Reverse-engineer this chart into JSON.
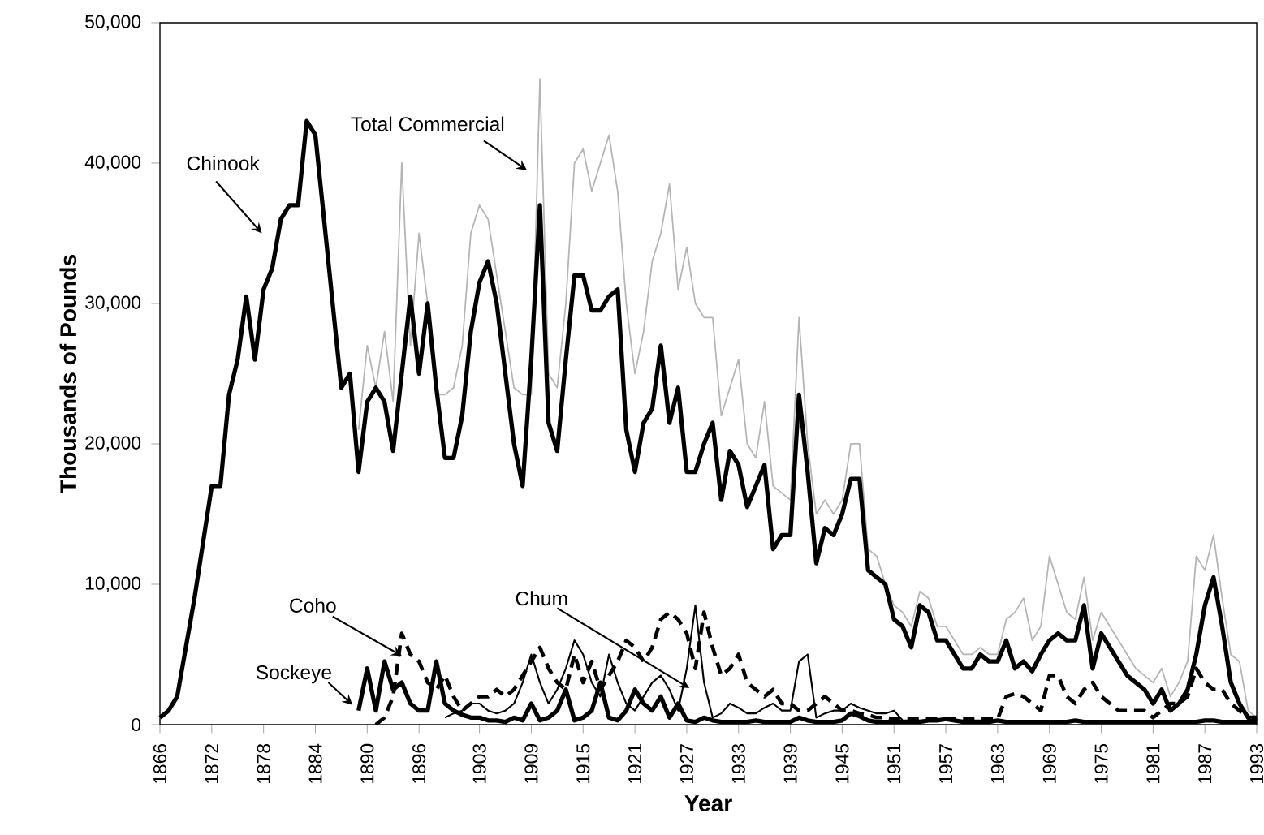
{
  "chart_data": {
    "type": "line",
    "xlabel": "Year",
    "ylabel": "Thousands of Pounds",
    "xlim": [
      1866,
      1993
    ],
    "ylim": [
      0,
      50000
    ],
    "xticks": [
      1866,
      1872,
      1878,
      1884,
      1890,
      1896,
      1903,
      1909,
      1915,
      1921,
      1927,
      1933,
      1939,
      1945,
      1951,
      1957,
      1963,
      1969,
      1975,
      1981,
      1987,
      1993
    ],
    "yticks": [
      0,
      {
        "value": 10000,
        "label": "10,000"
      },
      {
        "value": 20000,
        "label": "20,000"
      },
      {
        "value": 30000,
        "label": "30,000"
      },
      {
        "value": 40000,
        "label": "40,000"
      },
      {
        "value": 50000,
        "label": "50,000"
      }
    ],
    "grid": false,
    "legend": false,
    "marker": "none",
    "series": [
      {
        "name": "Total Commercial",
        "color": "#b4b4b4",
        "line_style": "solid",
        "x": [
          1889,
          1890,
          1891,
          1892,
          1893,
          1894,
          1895,
          1896,
          1897,
          1898,
          1899,
          1900,
          1901,
          1902,
          1903,
          1904,
          1905,
          1906,
          1907,
          1908,
          1909,
          1910,
          1911,
          1912,
          1913,
          1914,
          1915,
          1916,
          1917,
          1918,
          1919,
          1920,
          1921,
          1922,
          1923,
          1924,
          1925,
          1926,
          1927,
          1928,
          1929,
          1930,
          1931,
          1932,
          1933,
          1934,
          1935,
          1936,
          1937,
          1938,
          1939,
          1940,
          1941,
          1942,
          1943,
          1944,
          1945,
          1946,
          1947,
          1948,
          1949,
          1950,
          1951,
          1952,
          1953,
          1954,
          1955,
          1956,
          1957,
          1958,
          1959,
          1960,
          1961,
          1962,
          1963,
          1964,
          1965,
          1966,
          1967,
          1968,
          1969,
          1970,
          1971,
          1972,
          1973,
          1974,
          1975,
          1976,
          1977,
          1978,
          1979,
          1980,
          1981,
          1982,
          1983,
          1984,
          1985,
          1986,
          1987,
          1988,
          1989,
          1990,
          1991,
          1992,
          1993
        ],
        "values": [
          21000,
          27000,
          24000,
          28000,
          23000,
          40000,
          27000,
          35000,
          30000,
          23500,
          23500,
          24000,
          27000,
          35000,
          37000,
          36000,
          32000,
          28000,
          24000,
          23500,
          23500,
          46000,
          25000,
          24000,
          30000,
          40000,
          41000,
          38000,
          40000,
          42000,
          38000,
          30000,
          25000,
          28000,
          33000,
          35000,
          38500,
          31000,
          34000,
          30000,
          29000,
          29000,
          22000,
          24000,
          26000,
          20000,
          19000,
          23000,
          17000,
          16500,
          16000,
          29000,
          20000,
          15000,
          16000,
          15000,
          16000,
          20000,
          20000,
          12500,
          12000,
          10000,
          8500,
          8000,
          7000,
          9500,
          9000,
          7000,
          7000,
          6000,
          5000,
          5000,
          5500,
          5000,
          5000,
          7500,
          8000,
          9000,
          6000,
          7000,
          12000,
          10000,
          8000,
          7500,
          10500,
          6000,
          8000,
          7000,
          6000,
          5000,
          4000,
          3500,
          3000,
          4000,
          2000,
          3000,
          4500,
          12000,
          11000,
          13500,
          9000,
          5000,
          4500,
          1000,
          500
        ]
      },
      {
        "name": "Chinook",
        "color": "#000000",
        "line_style": "solid",
        "x": [
          1866,
          1867,
          1868,
          1869,
          1870,
          1871,
          1872,
          1873,
          1874,
          1875,
          1876,
          1877,
          1878,
          1879,
          1880,
          1881,
          1882,
          1883,
          1884,
          1885,
          1886,
          1887,
          1888,
          1889,
          1890,
          1891,
          1892,
          1893,
          1894,
          1895,
          1896,
          1897,
          1898,
          1899,
          1900,
          1901,
          1902,
          1903,
          1904,
          1905,
          1906,
          1907,
          1908,
          1909,
          1910,
          1911,
          1912,
          1913,
          1914,
          1915,
          1916,
          1917,
          1918,
          1919,
          1920,
          1921,
          1922,
          1923,
          1924,
          1925,
          1926,
          1927,
          1928,
          1929,
          1930,
          1931,
          1932,
          1933,
          1934,
          1935,
          1936,
          1937,
          1938,
          1939,
          1940,
          1941,
          1942,
          1943,
          1944,
          1945,
          1946,
          1947,
          1948,
          1949,
          1950,
          1951,
          1952,
          1953,
          1954,
          1955,
          1956,
          1957,
          1958,
          1959,
          1960,
          1961,
          1962,
          1963,
          1964,
          1965,
          1966,
          1967,
          1968,
          1969,
          1970,
          1971,
          1972,
          1973,
          1974,
          1975,
          1976,
          1977,
          1978,
          1979,
          1980,
          1981,
          1982,
          1983,
          1984,
          1985,
          1986,
          1987,
          1988,
          1989,
          1990,
          1991,
          1992,
          1993
        ],
        "values": [
          500,
          1000,
          2000,
          5500,
          9000,
          13000,
          17000,
          17000,
          23500,
          26000,
          30500,
          26000,
          31000,
          32500,
          36000,
          37000,
          37000,
          43000,
          42000,
          36000,
          30000,
          24000,
          25000,
          18000,
          23000,
          24000,
          23000,
          19500,
          25000,
          30500,
          25000,
          30000,
          24000,
          19000,
          19000,
          22000,
          28000,
          31500,
          33000,
          30000,
          25000,
          20000,
          17000,
          26000,
          37000,
          21500,
          19500,
          26000,
          32000,
          32000,
          29500,
          29500,
          30500,
          31000,
          21000,
          18000,
          21500,
          22500,
          27000,
          21500,
          24000,
          18000,
          18000,
          20000,
          21500,
          16000,
          19500,
          18500,
          15500,
          17000,
          18500,
          12500,
          13500,
          13500,
          23500,
          18000,
          11500,
          14000,
          13500,
          15000,
          17500,
          17500,
          11000,
          10500,
          10000,
          7500,
          7000,
          5500,
          8500,
          8000,
          6000,
          6000,
          5000,
          4000,
          4000,
          5000,
          4500,
          4500,
          6000,
          4000,
          4500,
          3800,
          5000,
          6000,
          6500,
          6000,
          6000,
          8500,
          4000,
          6500,
          5500,
          4500,
          3500,
          3000,
          2500,
          1500,
          2500,
          1000,
          1500,
          2500,
          5000,
          8500,
          10500,
          7000,
          3000,
          1500,
          500,
          500
        ]
      },
      {
        "name": "Coho",
        "color": "#000000",
        "line_style": "dashed",
        "x": [
          1891,
          1892,
          1893,
          1894,
          1895,
          1896,
          1897,
          1898,
          1899,
          1900,
          1901,
          1902,
          1903,
          1904,
          1905,
          1906,
          1907,
          1908,
          1909,
          1910,
          1911,
          1912,
          1913,
          1914,
          1915,
          1916,
          1917,
          1918,
          1919,
          1920,
          1921,
          1922,
          1923,
          1924,
          1925,
          1926,
          1927,
          1928,
          1929,
          1930,
          1931,
          1932,
          1933,
          1934,
          1935,
          1936,
          1937,
          1938,
          1939,
          1940,
          1941,
          1942,
          1943,
          1944,
          1945,
          1946,
          1947,
          1948,
          1949,
          1950,
          1951,
          1952,
          1953,
          1954,
          1955,
          1956,
          1957,
          1958,
          1959,
          1960,
          1961,
          1962,
          1963,
          1964,
          1965,
          1966,
          1967,
          1968,
          1969,
          1970,
          1971,
          1972,
          1973,
          1974,
          1975,
          1976,
          1977,
          1978,
          1979,
          1980,
          1981,
          1982,
          1983,
          1984,
          1985,
          1986,
          1987,
          1988,
          1989,
          1990,
          1991,
          1992,
          1993
        ],
        "values": [
          0,
          500,
          2000,
          6500,
          5000,
          4500,
          3000,
          2500,
          3500,
          2000,
          1000,
          1500,
          2000,
          2000,
          2500,
          2000,
          2500,
          3500,
          4500,
          5500,
          4000,
          3000,
          2500,
          5000,
          3000,
          4500,
          2500,
          3500,
          4500,
          6000,
          5500,
          4500,
          5500,
          7500,
          8000,
          7500,
          6500,
          4000,
          8000,
          5500,
          3500,
          4000,
          5000,
          3000,
          2500,
          2000,
          2500,
          1500,
          1500,
          1000,
          1000,
          1500,
          2000,
          1500,
          1000,
          1000,
          800,
          700,
          500,
          500,
          400,
          400,
          400,
          400,
          400,
          400,
          400,
          400,
          400,
          400,
          400,
          400,
          400,
          2000,
          2200,
          2000,
          1500,
          1000,
          3500,
          3500,
          2000,
          1500,
          2500,
          3000,
          2000,
          1500,
          1000,
          1000,
          1000,
          1000,
          500,
          1000,
          1500,
          1500,
          2000,
          4000,
          3000,
          2500,
          2500,
          1500,
          1000,
          500,
          300
        ]
      },
      {
        "name": "Sockeye",
        "color": "#000000",
        "line_style": "solid",
        "x": [
          1889,
          1890,
          1891,
          1892,
          1893,
          1894,
          1895,
          1896,
          1897,
          1898,
          1899,
          1900,
          1901,
          1902,
          1903,
          1904,
          1905,
          1906,
          1907,
          1908,
          1909,
          1910,
          1911,
          1912,
          1913,
          1914,
          1915,
          1916,
          1917,
          1918,
          1919,
          1920,
          1921,
          1922,
          1923,
          1924,
          1925,
          1926,
          1927,
          1928,
          1929,
          1930,
          1931,
          1932,
          1933,
          1934,
          1935,
          1936,
          1937,
          1938,
          1939,
          1940,
          1941,
          1942,
          1943,
          1944,
          1945,
          1946,
          1947,
          1948,
          1949,
          1950,
          1951,
          1952,
          1953,
          1954,
          1955,
          1956,
          1957,
          1958,
          1959,
          1960,
          1961,
          1962,
          1963,
          1964,
          1965,
          1966,
          1967,
          1968,
          1969,
          1970,
          1971,
          1972,
          1973,
          1974,
          1975,
          1976,
          1977,
          1978,
          1979,
          1980,
          1981,
          1982,
          1983,
          1984,
          1985,
          1986,
          1987,
          1988,
          1989,
          1990,
          1991,
          1992,
          1993
        ],
        "values": [
          1000,
          4000,
          1000,
          4500,
          2500,
          3000,
          1500,
          1000,
          1000,
          4500,
          1500,
          1000,
          700,
          500,
          500,
          300,
          300,
          200,
          500,
          300,
          1500,
          300,
          500,
          1000,
          2500,
          300,
          500,
          1000,
          3000,
          500,
          300,
          1000,
          2500,
          1500,
          1000,
          2000,
          500,
          1500,
          300,
          200,
          500,
          300,
          200,
          200,
          200,
          200,
          300,
          200,
          200,
          200,
          200,
          500,
          300,
          200,
          200,
          200,
          300,
          800,
          600,
          300,
          200,
          200,
          200,
          200,
          200,
          200,
          300,
          300,
          400,
          300,
          200,
          200,
          200,
          200,
          300,
          200,
          200,
          200,
          200,
          200,
          200,
          200,
          200,
          300,
          200,
          200,
          200,
          200,
          200,
          200,
          200,
          200,
          200,
          200,
          200,
          200,
          200,
          200,
          300,
          300,
          200,
          200,
          200,
          200,
          200
        ]
      },
      {
        "name": "Chum",
        "color": "#000000",
        "line_style": "solid",
        "x": [
          1899,
          1900,
          1901,
          1902,
          1903,
          1904,
          1905,
          1906,
          1907,
          1908,
          1909,
          1910,
          1911,
          1912,
          1913,
          1914,
          1915,
          1916,
          1917,
          1918,
          1919,
          1920,
          1921,
          1922,
          1923,
          1924,
          1925,
          1926,
          1927,
          1928,
          1929,
          1930,
          1931,
          1932,
          1933,
          1934,
          1935,
          1936,
          1937,
          1938,
          1939,
          1940,
          1941,
          1942,
          1943,
          1944,
          1945,
          1946,
          1947,
          1948,
          1949,
          1950,
          1951,
          1952,
          1953,
          1954,
          1955,
          1956,
          1957,
          1958,
          1959,
          1960,
          1961,
          1962,
          1963
        ],
        "values": [
          500,
          800,
          1000,
          1500,
          1500,
          1000,
          800,
          1000,
          1500,
          3000,
          5000,
          3000,
          1500,
          2500,
          4000,
          6000,
          5000,
          3000,
          2000,
          5000,
          3000,
          1500,
          1000,
          2000,
          3000,
          3500,
          2500,
          1000,
          4000,
          8500,
          3000,
          500,
          800,
          1500,
          1200,
          800,
          800,
          1200,
          1500,
          1000,
          1000,
          4500,
          5000,
          500,
          800,
          1000,
          1000,
          1500,
          1200,
          1000,
          800,
          800,
          1000,
          300,
          300,
          300,
          300,
          400,
          400,
          300,
          300,
          300,
          300,
          300,
          300
        ]
      }
    ]
  }
}
